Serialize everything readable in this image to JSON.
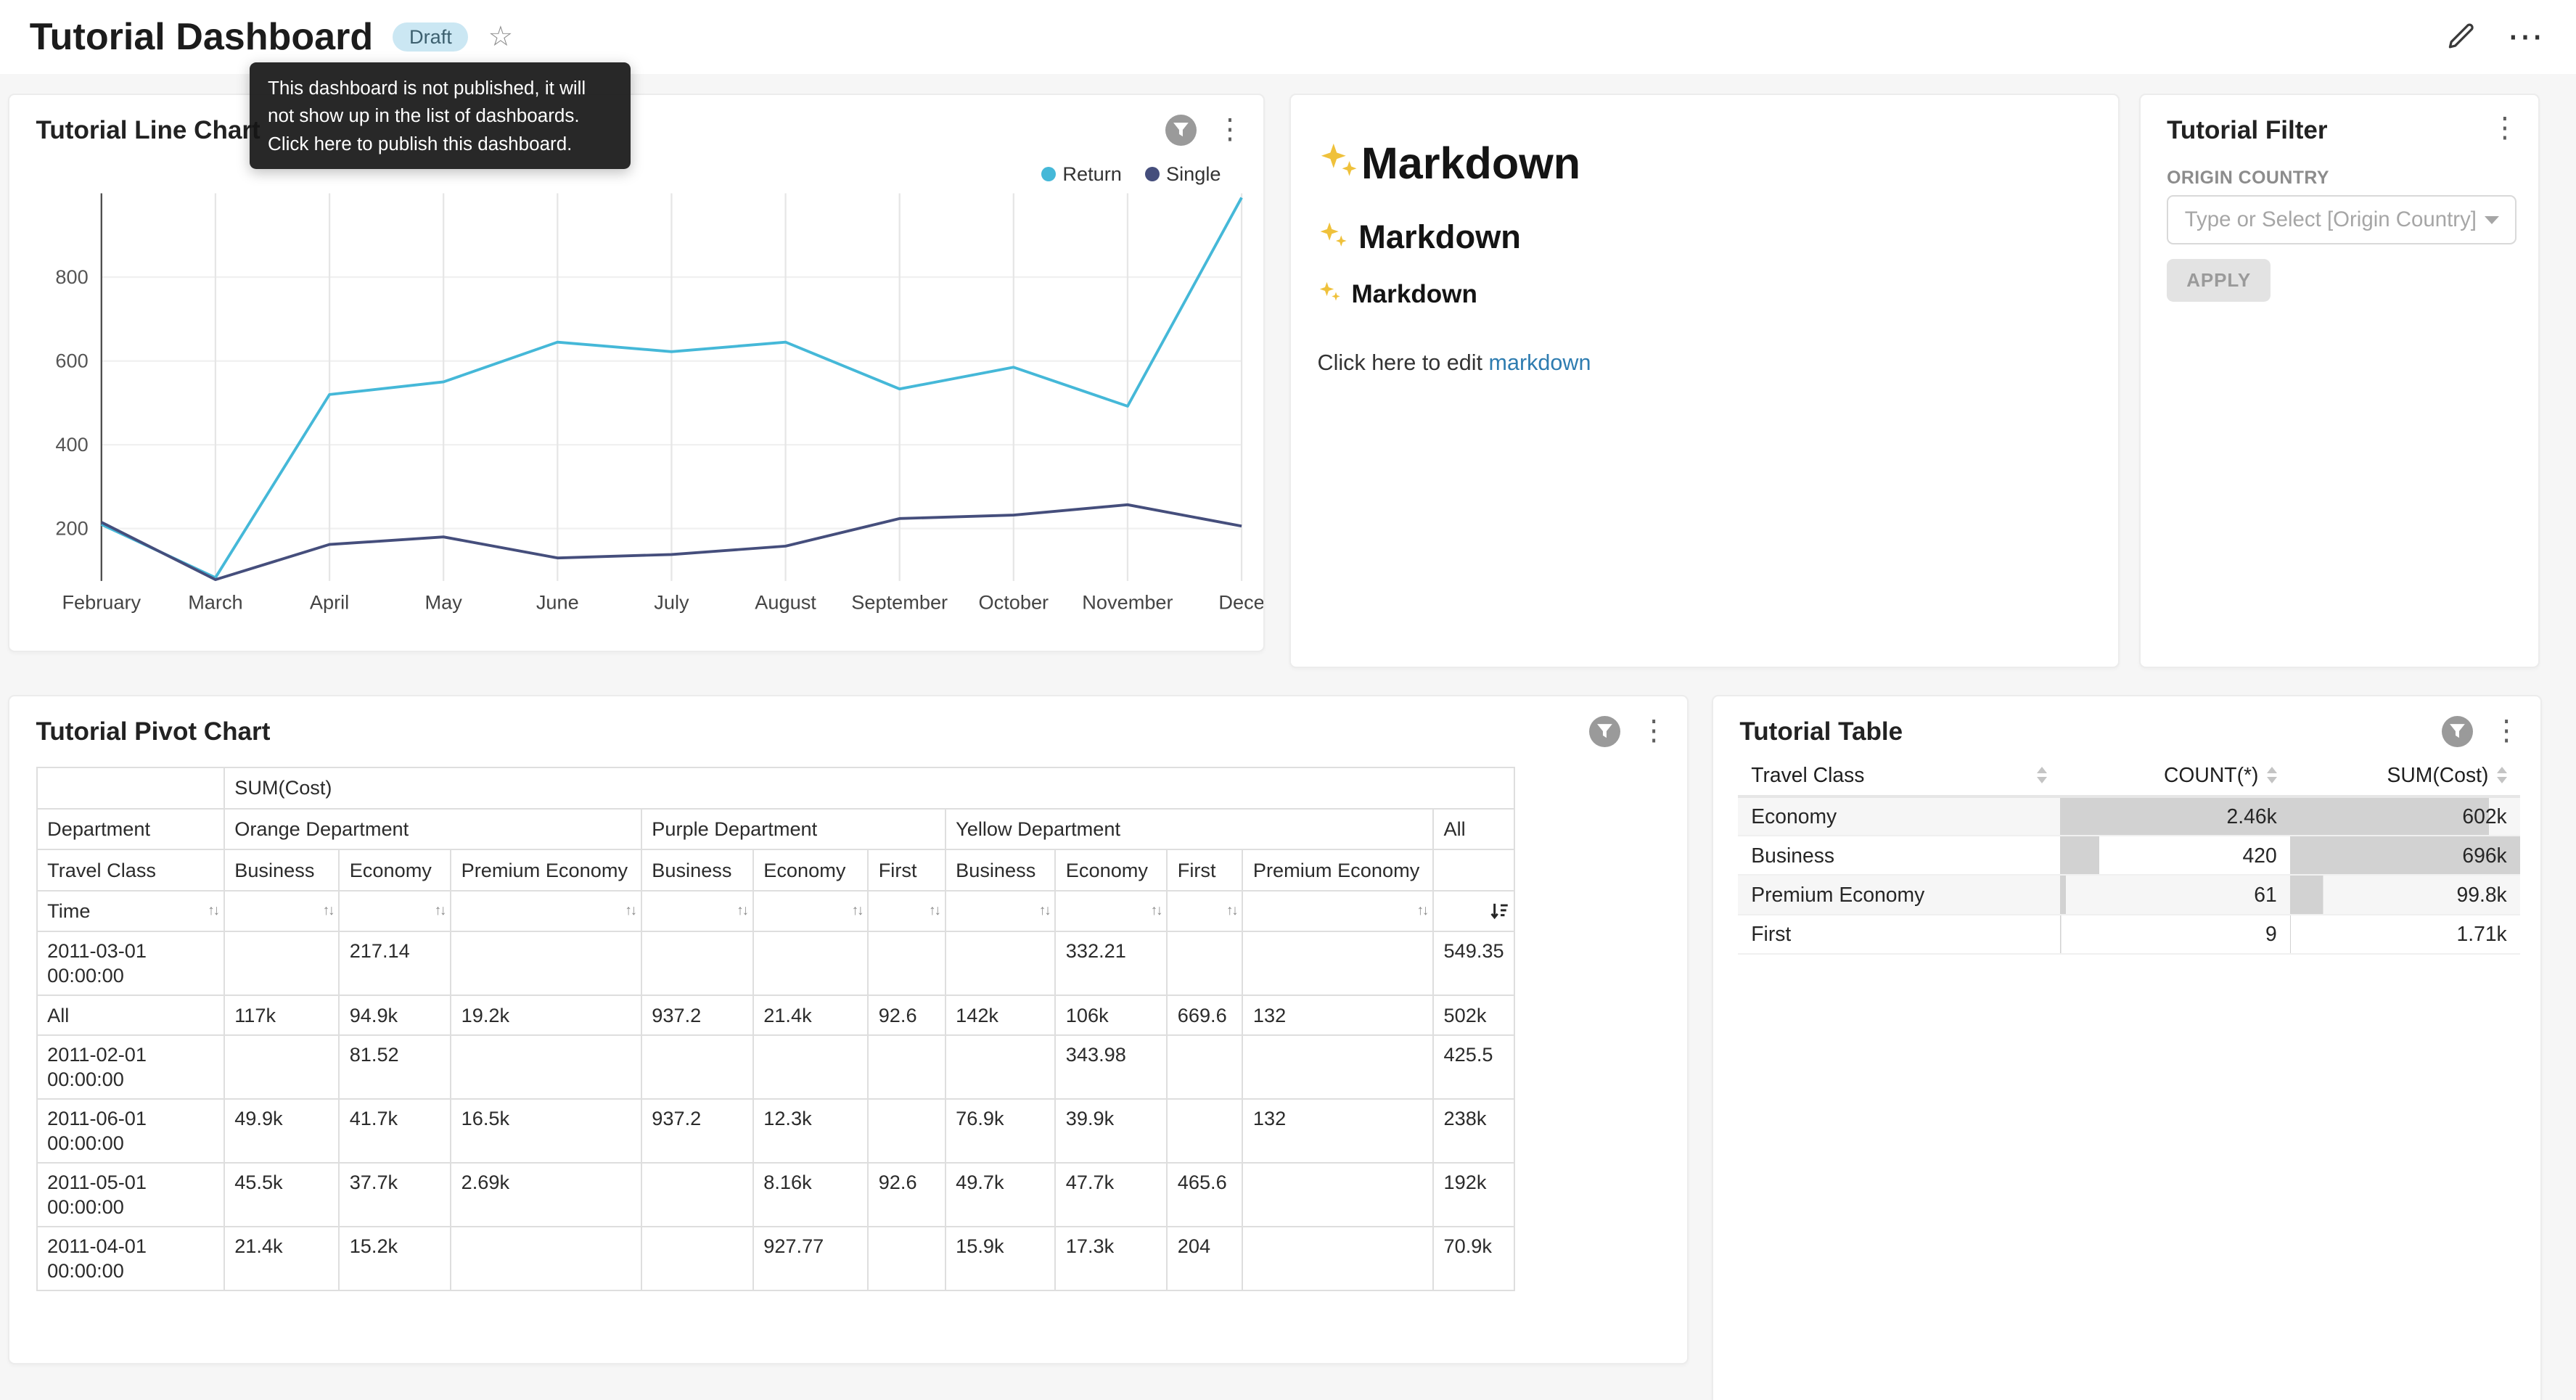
{
  "header": {
    "title": "Tutorial Dashboard",
    "badge": "Draft",
    "tooltip_lines": [
      "This dashboard is not published, it will",
      "not show up in the list of dashboards.",
      "Click here to publish this dashboard."
    ]
  },
  "line_chart_card": {
    "title": "Tutorial Line Chart"
  },
  "chart_data": {
    "type": "line",
    "title": "Tutorial Line Chart",
    "x": [
      "February",
      "March",
      "April",
      "May",
      "June",
      "July",
      "August",
      "September",
      "October",
      "November",
      "Dece"
    ],
    "series": [
      {
        "name": "Return",
        "color": "#45b8d8",
        "values": [
          210,
          83,
          520,
          550,
          645,
          622,
          645,
          533,
          585,
          492,
          990
        ]
      },
      {
        "name": "Single",
        "color": "#454e7c",
        "values": [
          215,
          78,
          162,
          180,
          130,
          138,
          158,
          224,
          232,
          257,
          206
        ]
      }
    ],
    "yticks": [
      200,
      400,
      600,
      800
    ],
    "ylim": [
      75,
      1000
    ],
    "xlabel": "",
    "ylabel": "",
    "grid": true,
    "legend_position": "top-right"
  },
  "markdown_card": {
    "h1": "Markdown",
    "h2": "Markdown",
    "h3": "Markdown",
    "sparkle_icon": "✨",
    "paragraph": "Click here to edit ",
    "link": "markdown"
  },
  "filter_card": {
    "title": "Tutorial Filter",
    "field_label": "ORIGIN COUNTRY",
    "placeholder": "Type or Select [Origin Country]",
    "apply": "APPLY"
  },
  "pivot_card": {
    "title": "Tutorial Pivot Chart",
    "metric": "SUM(Cost)",
    "row_dim": "Department",
    "col_dim": "Travel Class",
    "time_label": "Time",
    "all_label": "All",
    "groups": [
      {
        "label": "Orange Department",
        "cols": [
          "Business",
          "Economy",
          "Premium Economy"
        ]
      },
      {
        "label": "Purple Department",
        "cols": [
          "Business",
          "Economy",
          "First"
        ]
      },
      {
        "label": "Yellow Department",
        "cols": [
          "Business",
          "Economy",
          "First",
          "Premium Economy"
        ]
      }
    ],
    "rows": [
      {
        "label": "2011-03-01 00:00:00",
        "values": [
          "",
          "217.14",
          "",
          "",
          "",
          "",
          "",
          "332.21",
          "",
          "",
          "549.35"
        ]
      },
      {
        "label": "All",
        "values": [
          "117k",
          "94.9k",
          "19.2k",
          "937.2",
          "21.4k",
          "92.6",
          "142k",
          "106k",
          "669.6",
          "132",
          "502k"
        ]
      },
      {
        "label": "2011-02-01 00:00:00",
        "values": [
          "",
          "81.52",
          "",
          "",
          "",
          "",
          "",
          "343.98",
          "",
          "",
          "425.5"
        ]
      },
      {
        "label": "2011-06-01 00:00:00",
        "values": [
          "49.9k",
          "41.7k",
          "16.5k",
          "937.2",
          "12.3k",
          "",
          "76.9k",
          "39.9k",
          "",
          "132",
          "238k"
        ]
      },
      {
        "label": "2011-05-01 00:00:00",
        "values": [
          "45.5k",
          "37.7k",
          "2.69k",
          "",
          "8.16k",
          "92.6",
          "49.7k",
          "47.7k",
          "465.6",
          "",
          "192k"
        ]
      },
      {
        "label": "2011-04-01 00:00:00",
        "values": [
          "21.4k",
          "15.2k",
          "",
          "",
          "927.77",
          "",
          "15.9k",
          "17.3k",
          "204",
          "",
          "70.9k"
        ]
      }
    ]
  },
  "table_card": {
    "title": "Tutorial Table",
    "columns": [
      "Travel Class",
      "COUNT(*)",
      "SUM(Cost)"
    ],
    "rows": [
      {
        "travel_class": "Economy",
        "count": "2.46k",
        "count_pct": 100,
        "sum": "602k",
        "sum_pct": 86.5
      },
      {
        "travel_class": "Business",
        "count": "420",
        "count_pct": 17,
        "sum": "696k",
        "sum_pct": 100
      },
      {
        "travel_class": "Premium Economy",
        "count": "61",
        "count_pct": 2.5,
        "sum": "99.8k",
        "sum_pct": 14.3
      },
      {
        "travel_class": "First",
        "count": "9",
        "count_pct": 0.5,
        "sum": "1.71k",
        "sum_pct": 0.3
      }
    ]
  }
}
